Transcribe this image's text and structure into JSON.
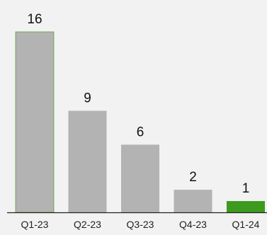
{
  "chart_data": {
    "type": "bar",
    "categories": [
      "Q1-23",
      "Q2-23",
      "Q3-23",
      "Q4-23",
      "Q1-24"
    ],
    "values": [
      16,
      9,
      6,
      2,
      1
    ],
    "data_labels": [
      "16",
      "9",
      "6",
      "2",
      "1"
    ],
    "title": "",
    "xlabel": "",
    "ylabel": "",
    "ylim": [
      0,
      16
    ],
    "grid": false,
    "legend": "none",
    "colors": {
      "default_bar": "#b3b3b3",
      "highlight_bar": "#3c9a1f",
      "highlight_index": 4,
      "first_bar_edge": "#5aa03a",
      "axis": "#222222",
      "background": "#f2f2f2"
    }
  }
}
